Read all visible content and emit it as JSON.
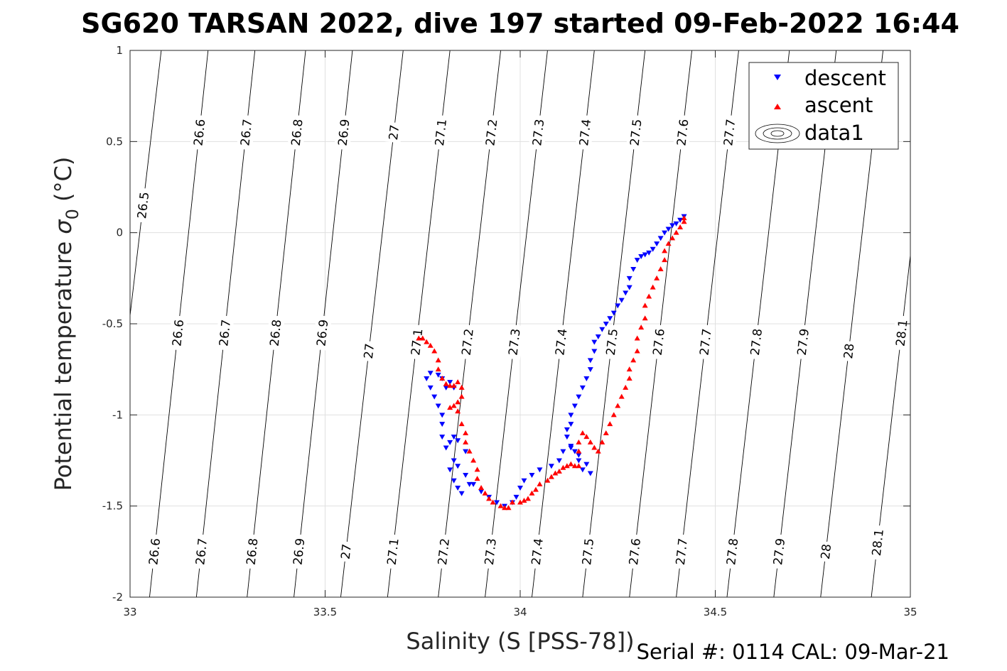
{
  "chart_data": {
    "type": "scatter",
    "title": "SG620 TARSAN 2022, dive 197 started 09-Feb-2022 16:44",
    "xlabel": "Salinity (S [PSS-78])",
    "ylabel_main": "Potential temperature ",
    "ylabel_sigma": "σ",
    "ylabel_sub": "0",
    "ylabel_unit": " (°C)",
    "xlim": [
      33,
      35
    ],
    "ylim": [
      -2,
      1
    ],
    "x_ticks": [
      33,
      33.5,
      34,
      34.5,
      35
    ],
    "x_tick_labels": [
      "33",
      "33.5",
      "34",
      "34.5",
      "35"
    ],
    "y_ticks": [
      1,
      0.5,
      0,
      -0.5,
      -1,
      -1.5,
      -2
    ],
    "y_tick_labels": [
      "1",
      "0.5",
      "0",
      "-0.5",
      "-1",
      "-1.5",
      "-2"
    ],
    "grid": true,
    "legend_position": "top-right",
    "legend": [
      "descent",
      "ascent",
      "data1"
    ],
    "colors": {
      "descent": "#0000ff",
      "ascent": "#ff0000",
      "contours": "#000000",
      "grid": "#e0e0e0"
    },
    "footer": "Serial #: 0114  CAL: 09-Mar-21",
    "density_contours": [
      {
        "value": 26.5,
        "s_bottom": null,
        "s_top": 33.08,
        "labels": [
          {
            "text": "26.5",
            "t": 0.15
          }
        ]
      },
      {
        "value": 26.6,
        "s_bottom": 33.05,
        "s_top": 33.2,
        "labels": [
          {
            "text": "26.6",
            "t": 0.55
          },
          {
            "text": "26.6",
            "t": -0.55
          },
          {
            "text": "26.6",
            "t": -1.75
          }
        ]
      },
      {
        "value": 26.7,
        "s_bottom": 33.17,
        "s_top": 33.32,
        "labels": [
          {
            "text": "26.7",
            "t": 0.55
          },
          {
            "text": "26.7",
            "t": -0.55
          },
          {
            "text": "26.7",
            "t": -1.75
          }
        ]
      },
      {
        "value": 26.8,
        "s_bottom": 33.3,
        "s_top": 33.45,
        "labels": [
          {
            "text": "26.8",
            "t": 0.55
          },
          {
            "text": "26.8",
            "t": -0.55
          },
          {
            "text": "26.8",
            "t": -1.75
          }
        ]
      },
      {
        "value": 26.9,
        "s_bottom": 33.42,
        "s_top": 33.57,
        "labels": [
          {
            "text": "26.9",
            "t": 0.55
          },
          {
            "text": "26.9",
            "t": -0.55
          },
          {
            "text": "26.9",
            "t": -1.75
          }
        ]
      },
      {
        "value": 27,
        "s_bottom": 33.54,
        "s_top": 33.7,
        "labels": [
          {
            "text": "27",
            "t": 0.55
          },
          {
            "text": "27",
            "t": -0.65
          },
          {
            "text": "27",
            "t": -1.75
          }
        ]
      },
      {
        "value": 27.1,
        "s_bottom": 33.66,
        "s_top": 33.82,
        "labels": [
          {
            "text": "27.1",
            "t": 0.55
          },
          {
            "text": "27.1",
            "t": -0.6
          },
          {
            "text": "27.1",
            "t": -1.75
          }
        ]
      },
      {
        "value": 27.2,
        "s_bottom": 33.79,
        "s_top": 33.95,
        "labels": [
          {
            "text": "27.2",
            "t": 0.55
          },
          {
            "text": "27.2",
            "t": -0.6
          },
          {
            "text": "27.2",
            "t": -1.75
          }
        ]
      },
      {
        "value": 27.3,
        "s_bottom": 33.91,
        "s_top": 34.07,
        "labels": [
          {
            "text": "27.3",
            "t": 0.55
          },
          {
            "text": "27.3",
            "t": -0.6
          },
          {
            "text": "27.3",
            "t": -1.75
          }
        ]
      },
      {
        "value": 27.4,
        "s_bottom": 34.03,
        "s_top": 34.19,
        "labels": [
          {
            "text": "27.4",
            "t": 0.55
          },
          {
            "text": "27.4",
            "t": -0.6
          },
          {
            "text": "27.4",
            "t": -1.75
          }
        ]
      },
      {
        "value": 27.5,
        "s_bottom": 34.16,
        "s_top": 34.32,
        "labels": [
          {
            "text": "27.5",
            "t": 0.55
          },
          {
            "text": "27.5",
            "t": -0.6
          },
          {
            "text": "27.5",
            "t": -1.75
          }
        ]
      },
      {
        "value": 27.6,
        "s_bottom": 34.28,
        "s_top": 34.44,
        "labels": [
          {
            "text": "27.6",
            "t": 0.55
          },
          {
            "text": "27.6",
            "t": -0.6
          },
          {
            "text": "27.6",
            "t": -1.75
          }
        ]
      },
      {
        "value": 27.7,
        "s_bottom": 34.4,
        "s_top": 34.56,
        "labels": [
          {
            "text": "27.7",
            "t": 0.55
          },
          {
            "text": "27.7",
            "t": -0.6
          },
          {
            "text": "27.7",
            "t": -1.75
          }
        ]
      },
      {
        "value": 27.8,
        "s_bottom": 34.53,
        "s_top": 34.69,
        "labels": [
          {
            "text": "27.8",
            "t": -0.6
          },
          {
            "text": "27.8",
            "t": -1.75
          }
        ]
      },
      {
        "value": 27.9,
        "s_bottom": 34.65,
        "s_top": 34.81,
        "labels": [
          {
            "text": "27.9",
            "t": -0.6
          },
          {
            "text": "27.9",
            "t": -1.75
          }
        ]
      },
      {
        "value": 28,
        "s_bottom": 34.77,
        "s_top": 34.93,
        "labels": [
          {
            "text": "28",
            "t": -0.65
          },
          {
            "text": "28",
            "t": -1.75
          }
        ]
      },
      {
        "value": 28.1,
        "s_bottom": 34.9,
        "s_top": 35.06,
        "labels": [
          {
            "text": "28.1",
            "t": -0.55
          },
          {
            "text": "28.1",
            "t": -1.7
          }
        ]
      }
    ],
    "series": [
      {
        "name": "descent",
        "marker": "triangle-down",
        "points": [
          [
            34.42,
            0.09
          ],
          [
            34.41,
            0.07
          ],
          [
            34.4,
            0.05
          ],
          [
            34.39,
            0.04
          ],
          [
            34.38,
            0.02
          ],
          [
            34.37,
            0.0
          ],
          [
            34.36,
            -0.03
          ],
          [
            34.35,
            -0.06
          ],
          [
            34.34,
            -0.09
          ],
          [
            34.33,
            -0.11
          ],
          [
            34.32,
            -0.12
          ],
          [
            34.31,
            -0.13
          ],
          [
            34.3,
            -0.15
          ],
          [
            34.29,
            -0.2
          ],
          [
            34.28,
            -0.25
          ],
          [
            34.28,
            -0.3
          ],
          [
            34.27,
            -0.33
          ],
          [
            34.26,
            -0.37
          ],
          [
            34.25,
            -0.4
          ],
          [
            34.24,
            -0.44
          ],
          [
            34.23,
            -0.47
          ],
          [
            34.22,
            -0.5
          ],
          [
            34.21,
            -0.53
          ],
          [
            34.2,
            -0.57
          ],
          [
            34.19,
            -0.6
          ],
          [
            34.19,
            -0.65
          ],
          [
            34.18,
            -0.7
          ],
          [
            34.18,
            -0.75
          ],
          [
            34.17,
            -0.8
          ],
          [
            34.16,
            -0.85
          ],
          [
            34.15,
            -0.9
          ],
          [
            34.14,
            -0.95
          ],
          [
            34.13,
            -1.0
          ],
          [
            34.13,
            -1.05
          ],
          [
            34.12,
            -1.08
          ],
          [
            34.12,
            -1.12
          ],
          [
            34.13,
            -1.18
          ],
          [
            34.15,
            -1.22
          ],
          [
            34.17,
            -1.27
          ],
          [
            34.18,
            -1.32
          ],
          [
            34.16,
            -1.3
          ],
          [
            34.15,
            -1.25
          ],
          [
            34.14,
            -1.2
          ],
          [
            34.13,
            -1.17
          ],
          [
            34.11,
            -1.2
          ],
          [
            34.1,
            -1.25
          ],
          [
            34.08,
            -1.28
          ],
          [
            34.05,
            -1.3
          ],
          [
            34.03,
            -1.33
          ],
          [
            34.01,
            -1.36
          ],
          [
            34.0,
            -1.4
          ],
          [
            33.99,
            -1.45
          ],
          [
            33.98,
            -1.48
          ],
          [
            33.96,
            -1.5
          ],
          [
            33.94,
            -1.48
          ],
          [
            33.92,
            -1.45
          ],
          [
            33.9,
            -1.42
          ],
          [
            33.88,
            -1.38
          ],
          [
            33.86,
            -1.33
          ],
          [
            33.84,
            -1.28
          ],
          [
            33.83,
            -1.25
          ],
          [
            33.82,
            -1.3
          ],
          [
            33.83,
            -1.36
          ],
          [
            33.84,
            -1.4
          ],
          [
            33.85,
            -1.43
          ],
          [
            33.87,
            -1.38
          ],
          [
            33.86,
            -1.2
          ],
          [
            33.84,
            -1.14
          ],
          [
            33.83,
            -1.12
          ],
          [
            33.82,
            -1.15
          ],
          [
            33.81,
            -1.18
          ],
          [
            33.8,
            -1.12
          ],
          [
            33.8,
            -1.05
          ],
          [
            33.8,
            -1.0
          ],
          [
            33.79,
            -0.95
          ],
          [
            33.78,
            -0.9
          ],
          [
            33.77,
            -0.85
          ],
          [
            33.76,
            -0.8
          ],
          [
            33.77,
            -0.77
          ],
          [
            33.79,
            -0.78
          ],
          [
            33.8,
            -0.8
          ],
          [
            33.81,
            -0.85
          ],
          [
            33.82,
            -0.82
          ],
          [
            33.83,
            -0.85
          ]
        ]
      },
      {
        "name": "ascent",
        "marker": "triangle-up",
        "points": [
          [
            33.74,
            -0.58
          ],
          [
            33.75,
            -0.58
          ],
          [
            33.76,
            -0.6
          ],
          [
            33.77,
            -0.62
          ],
          [
            33.78,
            -0.65
          ],
          [
            33.79,
            -0.7
          ],
          [
            33.79,
            -0.75
          ],
          [
            33.8,
            -0.8
          ],
          [
            33.81,
            -0.83
          ],
          [
            33.82,
            -0.84
          ],
          [
            33.83,
            -0.84
          ],
          [
            33.84,
            -0.82
          ],
          [
            33.85,
            -0.85
          ],
          [
            33.85,
            -0.9
          ],
          [
            33.84,
            -0.93
          ],
          [
            33.83,
            -0.95
          ],
          [
            33.82,
            -0.96
          ],
          [
            33.84,
            -0.98
          ],
          [
            33.85,
            -1.05
          ],
          [
            33.86,
            -1.1
          ],
          [
            33.86,
            -1.15
          ],
          [
            33.87,
            -1.2
          ],
          [
            33.88,
            -1.25
          ],
          [
            33.89,
            -1.3
          ],
          [
            33.89,
            -1.35
          ],
          [
            33.9,
            -1.4
          ],
          [
            33.91,
            -1.43
          ],
          [
            33.92,
            -1.46
          ],
          [
            33.93,
            -1.48
          ],
          [
            33.95,
            -1.5
          ],
          [
            33.96,
            -1.51
          ],
          [
            33.97,
            -1.51
          ],
          [
            33.98,
            -1.48
          ],
          [
            34.0,
            -1.48
          ],
          [
            34.01,
            -1.47
          ],
          [
            34.02,
            -1.46
          ],
          [
            34.03,
            -1.43
          ],
          [
            34.04,
            -1.41
          ],
          [
            34.05,
            -1.38
          ],
          [
            34.07,
            -1.36
          ],
          [
            34.08,
            -1.34
          ],
          [
            34.09,
            -1.32
          ],
          [
            34.1,
            -1.31
          ],
          [
            34.11,
            -1.29
          ],
          [
            34.12,
            -1.28
          ],
          [
            34.13,
            -1.27
          ],
          [
            34.14,
            -1.28
          ],
          [
            34.15,
            -1.28
          ],
          [
            34.15,
            -1.2
          ],
          [
            34.15,
            -1.15
          ],
          [
            34.16,
            -1.1
          ],
          [
            34.17,
            -1.12
          ],
          [
            34.18,
            -1.15
          ],
          [
            34.19,
            -1.18
          ],
          [
            34.2,
            -1.2
          ],
          [
            34.21,
            -1.15
          ],
          [
            34.22,
            -1.1
          ],
          [
            34.23,
            -1.05
          ],
          [
            34.24,
            -1.0
          ],
          [
            34.25,
            -0.95
          ],
          [
            34.26,
            -0.9
          ],
          [
            34.27,
            -0.85
          ],
          [
            34.28,
            -0.8
          ],
          [
            34.28,
            -0.75
          ],
          [
            34.29,
            -0.7
          ],
          [
            34.3,
            -0.65
          ],
          [
            34.3,
            -0.58
          ],
          [
            34.31,
            -0.52
          ],
          [
            34.32,
            -0.47
          ],
          [
            34.32,
            -0.4
          ],
          [
            34.33,
            -0.35
          ],
          [
            34.34,
            -0.3
          ],
          [
            34.35,
            -0.25
          ],
          [
            34.36,
            -0.2
          ],
          [
            34.37,
            -0.15
          ],
          [
            34.37,
            -0.1
          ],
          [
            34.38,
            -0.06
          ],
          [
            34.39,
            -0.03
          ],
          [
            34.4,
            0.0
          ],
          [
            34.41,
            0.03
          ],
          [
            34.42,
            0.06
          ],
          [
            34.42,
            0.08
          ]
        ]
      }
    ]
  }
}
